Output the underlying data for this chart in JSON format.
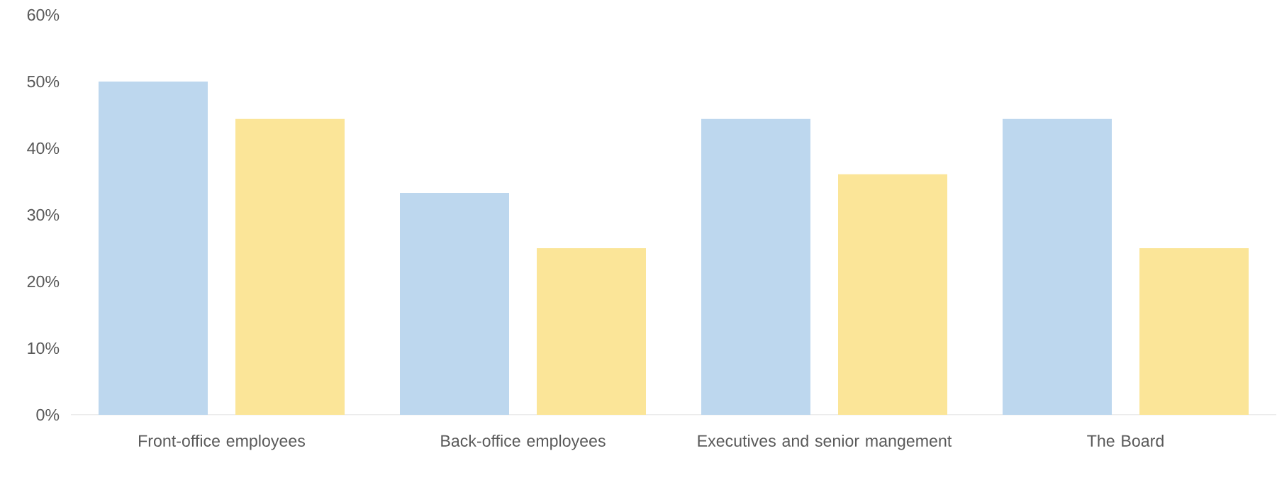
{
  "chart_data": {
    "type": "bar",
    "categories": [
      "Front-office employees",
      "Back-office employees",
      "Executives and senior mangement",
      "The Board"
    ],
    "series": [
      {
        "color": "#bdd7ee",
        "values": [
          50,
          33.3,
          44.4,
          44.4
        ]
      },
      {
        "color": "#fbe598",
        "values": [
          44.4,
          25,
          36.1,
          25
        ]
      }
    ],
    "ylim": [
      0,
      60
    ],
    "yticks": [
      {
        "value": 0,
        "label": "0%"
      },
      {
        "value": 10,
        "label": "10%"
      },
      {
        "value": 20,
        "label": "20%"
      },
      {
        "value": 30,
        "label": "30%"
      },
      {
        "value": 40,
        "label": "40%"
      },
      {
        "value": 50,
        "label": "50%"
      },
      {
        "value": 60,
        "label": "60%"
      }
    ],
    "grid": false
  }
}
